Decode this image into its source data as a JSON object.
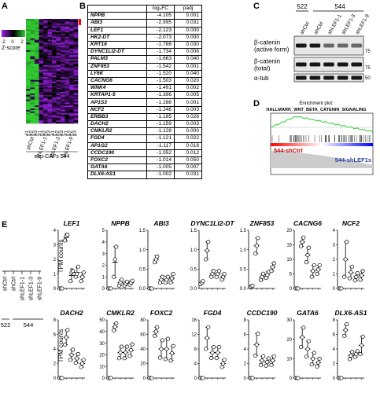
{
  "panels": {
    "A": "A",
    "B": "B",
    "C": "C",
    "D": "D",
    "E": "E"
  },
  "heatmap": {
    "zscore_label": "Z-score",
    "scale_ticks": [
      "-2",
      "0",
      "2"
    ],
    "colors": {
      "low": "#a020f0",
      "mid": "#000000",
      "high": "#33cc33",
      "marker": "#ff0000"
    },
    "replicate_labels": [
      "#1",
      "#2",
      "#3",
      "#1",
      "#2",
      "#3",
      "#1",
      "#2",
      "#3",
      "#1",
      "#2",
      "#3"
    ],
    "groups": [
      "shCtrl",
      "shLEF1-1",
      "shLEF1-3",
      "shLEF1-9"
    ],
    "caption": "exp-CAFs 544"
  },
  "table": {
    "headers": [
      "",
      "log₂FC",
      "padj"
    ],
    "rows": [
      [
        "NPPB",
        "-4.105",
        "0.001"
      ],
      [
        "ABI3",
        "-2.995",
        "0.031"
      ],
      [
        "LEF1",
        "-2.123",
        "0.000"
      ],
      [
        "HK2-DT",
        "-2.073",
        "0.000"
      ],
      [
        "KRT16",
        "-1.786",
        "0.030"
      ],
      [
        "DYNC1LI2-DT",
        "-1.734",
        "0.006"
      ],
      [
        "PALM3",
        "-1.663",
        "0.040"
      ],
      [
        "ZNF853",
        "-1.542",
        "0.001"
      ],
      [
        "LY6K",
        "-1.520",
        "0.040"
      ],
      [
        "CACNG6",
        "-1.503",
        "0.020"
      ],
      [
        "WNK4",
        "-1.491",
        "0.002"
      ],
      [
        "KRTAP1-5",
        "-1.396",
        "0.005"
      ],
      [
        "AP1S3",
        "-1.288",
        "0.001"
      ],
      [
        "NCF2",
        "-1.246",
        "0.003"
      ],
      [
        "ERBB3",
        "-1.185",
        "0.026"
      ],
      [
        "DACH2",
        "-1.159",
        "0.003"
      ],
      [
        "CMKLR2",
        "-1.128",
        "0.000"
      ],
      [
        "FGD4",
        "-1.121",
        "0.022"
      ],
      [
        "AP1G2",
        "-1.117",
        "0.018"
      ],
      [
        "CCDC190",
        "-1.052",
        "0.012"
      ],
      [
        "FOXC2",
        "-1.014",
        "0.050"
      ],
      [
        "GATA6",
        "-1.005",
        "0.007"
      ],
      [
        "DLX6-AS1",
        "-1.002",
        "0.031"
      ]
    ]
  },
  "western": {
    "groups": [
      "522",
      "544"
    ],
    "lanes": [
      "shCtrl",
      "shCtrl",
      "shLEF1-1",
      "shLEF1-3",
      "shLEF1-9"
    ],
    "rows": [
      {
        "label": "β-catenin\n(active form)",
        "marker": "75"
      },
      {
        "label": "β-catenin\n(total)",
        "marker": "75"
      },
      {
        "label": "α-tub",
        "marker": "50"
      }
    ]
  },
  "gsea": {
    "title": "Enrichment plot:",
    "subtitle": "HALLMARK_WNT_BETA_CATENIN_SIGNALING",
    "label_left": "544-shCtrl",
    "label_right": "544-shLEF1s",
    "curve_color": "#33cc33"
  },
  "legend_e": {
    "lanes": [
      "shCtrl",
      "shCtrl",
      "shLEF1-1",
      "shLEF1-3",
      "shLEF1-9"
    ],
    "groups": [
      "522",
      "544"
    ]
  },
  "ylabel": "TPM counts",
  "chart_data": [
    {
      "type": "scatter",
      "title": "LEF1",
      "ylabel": "TPM counts",
      "yticks": [
        "0",
        "1",
        "2",
        "3",
        "4"
      ],
      "ylim": [
        0,
        4
      ],
      "means": [
        0,
        3.5,
        0.9,
        1.1,
        0.8
      ],
      "sd": [
        0,
        0.25,
        0.45,
        0.35,
        0.3
      ],
      "points": [
        [
          0,
          0,
          0
        ],
        [
          3.3,
          3.6,
          3.7
        ],
        [
          0.5,
          1.1,
          1.2
        ],
        [
          0.8,
          1.0,
          1.5
        ],
        [
          0.5,
          0.8,
          1.1
        ]
      ]
    },
    {
      "type": "scatter",
      "title": "NPPB",
      "yticks": [
        "0",
        "1",
        "2",
        "3",
        "4",
        "5"
      ],
      "ylim": [
        0,
        6
      ],
      "means": [
        0,
        2.7,
        0.6,
        0.5,
        0.6
      ],
      "sd": [
        0,
        1.6,
        0.3,
        0.2,
        0.2
      ],
      "points": [
        [
          0,
          0,
          0
        ],
        [
          1.2,
          3.0,
          4.3
        ],
        [
          0.3,
          0.6,
          0.9
        ],
        [
          0.3,
          0.5,
          0.7
        ],
        [
          0.4,
          0.6,
          0.8
        ]
      ]
    },
    {
      "type": "scatter",
      "title": "ABI3",
      "yticks": [
        "0.0",
        "0.5",
        "1.0",
        "1.5"
      ],
      "ylim": [
        0,
        2
      ],
      "means": [
        0,
        1.0,
        0.3,
        0.3,
        0.35
      ],
      "sd": [
        0,
        0.12,
        0.12,
        0.12,
        0.15
      ],
      "points": [
        [
          0,
          0,
          0
        ],
        [
          0.9,
          1.0,
          1.1
        ],
        [
          0.2,
          0.3,
          0.4
        ],
        [
          0.2,
          0.3,
          0.4
        ],
        [
          0.2,
          0.35,
          0.5
        ]
      ]
    },
    {
      "type": "scatter",
      "title": "DYNC1LI2-DT",
      "yticks": [
        "0.0",
        "0.5",
        "1.0",
        "1.5"
      ],
      "ylim": [
        0,
        2
      ],
      "means": [
        0.2,
        1.3,
        0.5,
        0.5,
        0.4
      ],
      "sd": [
        0.05,
        0.3,
        0.12,
        0.12,
        0.1
      ],
      "points": [
        [
          0.15,
          0.2,
          0.25
        ],
        [
          1.0,
          1.3,
          1.6
        ],
        [
          0.4,
          0.5,
          0.6
        ],
        [
          0.4,
          0.5,
          0.6
        ],
        [
          0.3,
          0.4,
          0.5
        ]
      ]
    },
    {
      "type": "scatter",
      "title": "ZNF853",
      "yticks": [
        "0.0",
        "0.5",
        "1.0",
        "1.5"
      ],
      "ylim": [
        0,
        1.5
      ],
      "means": [
        0.05,
        1.1,
        0.3,
        0.35,
        0.55
      ],
      "sd": [
        0.03,
        0.2,
        0.08,
        0.08,
        0.1
      ],
      "points": [
        [
          0.03,
          0.05,
          0.07
        ],
        [
          0.9,
          1.1,
          1.3
        ],
        [
          0.22,
          0.3,
          0.38
        ],
        [
          0.27,
          0.35,
          0.43
        ],
        [
          0.45,
          0.55,
          0.65
        ]
      ]
    },
    {
      "type": "scatter",
      "title": "CACNG6",
      "yticks": [
        "0",
        "5",
        "10",
        "15",
        "20"
      ],
      "ylim": [
        0,
        20
      ],
      "means": [
        0,
        16,
        11.5,
        6,
        6.5
      ],
      "sd": [
        0,
        1.5,
        2.5,
        2,
        1.5
      ],
      "points": [
        [
          0,
          0,
          0
        ],
        [
          14.5,
          16,
          17.5
        ],
        [
          9,
          11.5,
          14
        ],
        [
          4,
          6,
          8
        ],
        [
          5,
          6.5,
          8
        ]
      ]
    },
    {
      "type": "scatter",
      "title": "NCF2",
      "yticks": [
        "0",
        "1",
        "2",
        "3",
        "4"
      ],
      "ylim": [
        0,
        4
      ],
      "means": [
        0,
        2.0,
        1.1,
        0.8,
        0.9
      ],
      "sd": [
        0,
        1.2,
        0.4,
        0.25,
        0.3
      ],
      "points": [
        [
          0,
          0,
          0
        ],
        [
          0.8,
          2.0,
          3.2
        ],
        [
          0.7,
          1.1,
          1.5
        ],
        [
          0.55,
          0.8,
          1.05
        ],
        [
          0.6,
          0.9,
          1.2
        ]
      ]
    },
    {
      "type": "scatter",
      "title": "DACH2",
      "ylabel": "TPM counts",
      "yticks": [
        "0",
        "2",
        "4",
        "6",
        "8"
      ],
      "ylim": [
        0,
        8
      ],
      "means": [
        0,
        5.6,
        3.2,
        2.7,
        2.0
      ],
      "sd": [
        0,
        1.0,
        0.7,
        0.6,
        0.5
      ],
      "points": [
        [
          0,
          0,
          0
        ],
        [
          4.6,
          5.6,
          6.6
        ],
        [
          2.5,
          3.2,
          3.9
        ],
        [
          2.1,
          2.7,
          3.3
        ],
        [
          1.5,
          2.0,
          2.5
        ]
      ]
    },
    {
      "type": "scatter",
      "title": "CMKLR2",
      "yticks": [
        "0",
        "10",
        "20",
        "30",
        "40",
        "50"
      ],
      "ylim": [
        0,
        50
      ],
      "means": [
        0,
        44,
        22,
        22,
        24
      ],
      "sd": [
        0,
        3,
        5,
        5,
        5
      ],
      "points": [
        [
          0,
          0,
          0
        ],
        [
          41,
          44,
          47
        ],
        [
          17,
          22,
          27
        ],
        [
          17,
          22,
          27
        ],
        [
          19,
          24,
          29
        ]
      ]
    },
    {
      "type": "scatter",
      "title": "FOXC2",
      "yticks": [
        "0",
        "20",
        "40",
        "60",
        "80"
      ],
      "ylim": [
        0,
        80
      ],
      "means": [
        0,
        64,
        40,
        40,
        34
      ],
      "sd": [
        0,
        6,
        12,
        14,
        10
      ],
      "points": [
        [
          0,
          0,
          0
        ],
        [
          58,
          64,
          70
        ],
        [
          28,
          40,
          52
        ],
        [
          26,
          40,
          54
        ],
        [
          24,
          34,
          44
        ]
      ]
    },
    {
      "type": "scatter",
      "title": "FGD4",
      "yticks": [
        "0",
        "4",
        "8",
        "12",
        "16"
      ],
      "ylim": [
        0,
        16
      ],
      "means": [
        0,
        11,
        7,
        7,
        4
      ],
      "sd": [
        0,
        3,
        1.5,
        1.5,
        1
      ],
      "points": [
        [
          0,
          0,
          0
        ],
        [
          8,
          11,
          14
        ],
        [
          5.5,
          7,
          8.5
        ],
        [
          5.5,
          7,
          8.5
        ],
        [
          3,
          4,
          5
        ]
      ]
    },
    {
      "type": "scatter",
      "title": "CCDC190",
      "yticks": [
        "0",
        "2",
        "4",
        "6",
        "8"
      ],
      "ylim": [
        0,
        8
      ],
      "means": [
        0,
        4.6,
        2.4,
        2.2,
        2.4
      ],
      "sd": [
        0,
        1.5,
        0.6,
        0.5,
        0.6
      ],
      "points": [
        [
          0,
          0,
          0
        ],
        [
          3.1,
          4.6,
          6.1
        ],
        [
          1.8,
          2.4,
          3.0
        ],
        [
          1.7,
          2.2,
          2.7
        ],
        [
          1.8,
          2.4,
          3.0
        ]
      ]
    },
    {
      "type": "scatter",
      "title": "GATA6",
      "yticks": [
        "0",
        "10",
        "20",
        "30"
      ],
      "ylim": [
        0,
        30
      ],
      "means": [
        0,
        21,
        15,
        10,
        8
      ],
      "sd": [
        0,
        5,
        4,
        3,
        2
      ],
      "points": [
        [
          0,
          0,
          0
        ],
        [
          16,
          21,
          26
        ],
        [
          11,
          15,
          19
        ],
        [
          7,
          10,
          13
        ],
        [
          6,
          8,
          10
        ]
      ]
    },
    {
      "type": "scatter",
      "title": "DLX6-AS1",
      "yticks": [
        "0",
        "2",
        "4",
        "6",
        "8"
      ],
      "ylim": [
        0,
        8
      ],
      "means": [
        0,
        6.6,
        3.1,
        3.3,
        4.5
      ],
      "sd": [
        0,
        0.8,
        0.5,
        0.4,
        1.2
      ],
      "points": [
        [
          0,
          0,
          0
        ],
        [
          5.8,
          6.6,
          7.4
        ],
        [
          2.6,
          3.1,
          3.6
        ],
        [
          2.9,
          3.3,
          3.7
        ],
        [
          3.3,
          4.5,
          5.7
        ]
      ]
    }
  ]
}
